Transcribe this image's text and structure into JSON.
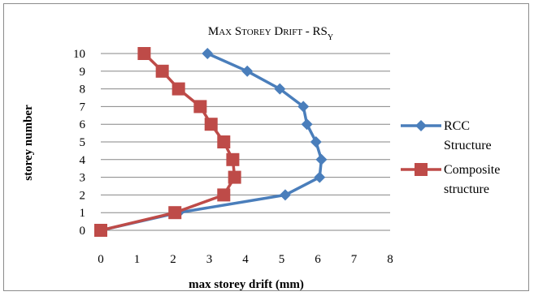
{
  "chart_data": {
    "type": "line",
    "title": "Max Storey Drift - RS",
    "title_subscript": "Y",
    "xlabel": "max storey drift (mm)",
    "ylabel": "storey number",
    "xlim": [
      0,
      8
    ],
    "ylim": [
      0,
      10
    ],
    "x_ticks": [
      "0",
      "1",
      "2",
      "3",
      "4",
      "5",
      "6",
      "7",
      "8"
    ],
    "y_ticks": [
      "0",
      "1",
      "2",
      "3",
      "4",
      "5",
      "6",
      "7",
      "8",
      "9",
      "10"
    ],
    "grid": "horizontal",
    "legend_position": "right",
    "series": [
      {
        "name": "RCC Structure",
        "name_lines": [
          "RCC",
          "Structure"
        ],
        "color": "#4a7ebb",
        "marker": "diamond",
        "x": [
          0,
          2.15,
          5.1,
          6.05,
          6.1,
          5.95,
          5.7,
          5.6,
          4.95,
          4.05,
          2.95
        ],
        "y": [
          0,
          1,
          2,
          3,
          4,
          5,
          6,
          7,
          8,
          9,
          10
        ]
      },
      {
        "name": "Composite structure",
        "name_lines": [
          "Composite",
          "structure"
        ],
        "color": "#be4b48",
        "marker": "square",
        "x": [
          0,
          2.05,
          3.4,
          3.7,
          3.65,
          3.4,
          3.05,
          2.75,
          2.15,
          1.7,
          1.2
        ],
        "y": [
          0,
          1,
          2,
          3,
          4,
          5,
          6,
          7,
          8,
          9,
          10
        ]
      }
    ]
  }
}
